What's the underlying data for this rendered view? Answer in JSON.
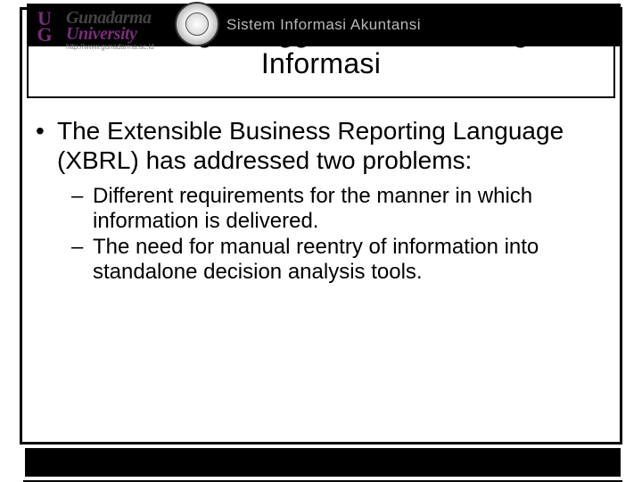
{
  "header": {
    "banner_text": "Sistem Informasi Akuntansi",
    "logo": {
      "ug_top": "U",
      "ug_bottom": "G",
      "line1": "Gunadarma",
      "line2": "University",
      "url": "http://www.gunadarma.ac.id"
    }
  },
  "title": {
    "line1": "Peluang Menggunakan Teknologi",
    "line2": "Informasi"
  },
  "body": {
    "bullet1": "The Extensible Business Reporting Language (XBRL) has addressed two problems:",
    "sub1": "Different requirements for the manner in which information is delivered.",
    "sub2": "The need for manual reentry of information into standalone decision analysis tools."
  },
  "style": {
    "banner_bg": "#000000",
    "banner_text_color": "#b8b8b8",
    "title_fontsize": 32,
    "body_l1_fontsize": 28,
    "body_l2_fontsize": 24,
    "logo_purple": "#7b2d7b",
    "border_color": "#000000",
    "background": "#ffffff"
  }
}
